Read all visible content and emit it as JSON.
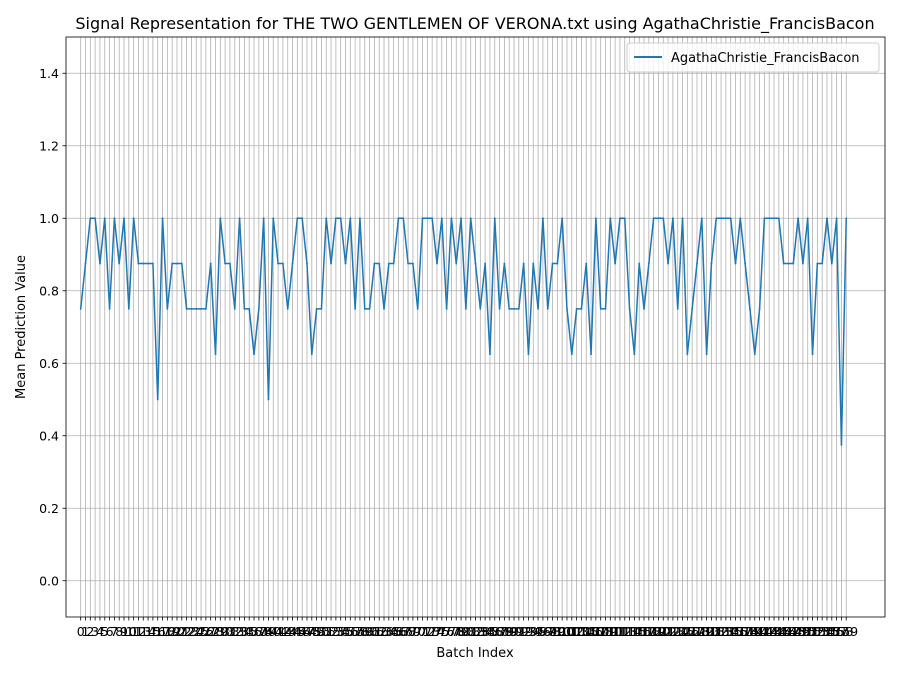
{
  "chart_data": {
    "type": "line",
    "title": "Signal Representation for THE TWO GENTLEMEN OF VERONA.txt using AgathaChristie_FrancisBacon",
    "xlabel": "Batch Index",
    "ylabel": "Mean Prediction Value",
    "xlim": [
      -3.05,
      167.05
    ],
    "ylim": [
      -0.1,
      1.5
    ],
    "yticks": [
      0.0,
      0.2,
      0.4,
      0.6,
      0.8,
      1.0,
      1.2,
      1.4
    ],
    "grid": true,
    "legend_position": "top-right",
    "series": [
      {
        "name": "AgathaChristie_FrancisBacon",
        "color": "#1f77b4",
        "values": [
          0.75,
          0.875,
          1.0,
          1.0,
          0.875,
          1.0,
          0.75,
          1.0,
          0.875,
          1.0,
          0.75,
          1.0,
          0.875,
          0.875,
          0.875,
          0.875,
          0.5,
          1.0,
          0.75,
          0.875,
          0.875,
          0.875,
          0.75,
          0.75,
          0.75,
          0.75,
          0.75,
          0.875,
          0.625,
          1.0,
          0.875,
          0.875,
          0.75,
          1.0,
          0.75,
          0.75,
          0.625,
          0.75,
          1.0,
          0.5,
          1.0,
          0.875,
          0.875,
          0.75,
          0.875,
          1.0,
          1.0,
          0.875,
          0.625,
          0.75,
          0.75,
          1.0,
          0.875,
          1.0,
          1.0,
          0.875,
          1.0,
          0.75,
          1.0,
          0.75,
          0.75,
          0.875,
          0.875,
          0.75,
          0.875,
          0.875,
          1.0,
          1.0,
          0.875,
          0.875,
          0.75,
          1.0,
          1.0,
          1.0,
          0.875,
          1.0,
          0.75,
          1.0,
          0.875,
          1.0,
          0.75,
          1.0,
          0.875,
          0.75,
          0.875,
          0.625,
          1.0,
          0.75,
          0.875,
          0.75,
          0.75,
          0.75,
          0.875,
          0.625,
          0.875,
          0.75,
          1.0,
          0.75,
          0.875,
          0.875,
          1.0,
          0.75,
          0.625,
          0.75,
          0.75,
          0.875,
          0.625,
          1.0,
          0.75,
          0.75,
          1.0,
          0.875,
          1.0,
          1.0,
          0.75,
          0.625,
          0.875,
          0.75,
          0.875,
          1.0,
          1.0,
          1.0,
          0.875,
          1.0,
          0.75,
          1.0,
          0.625,
          0.75,
          0.875,
          1.0,
          0.625,
          0.875,
          1.0,
          1.0,
          1.0,
          1.0,
          0.875,
          1.0,
          0.875,
          0.75,
          0.625,
          0.75,
          1.0,
          1.0,
          1.0,
          1.0,
          0.875,
          0.875,
          0.875,
          1.0,
          0.875,
          1.0,
          0.625,
          0.875,
          0.875,
          1.0,
          0.875,
          1.0,
          0.375,
          1.0
        ]
      }
    ]
  }
}
